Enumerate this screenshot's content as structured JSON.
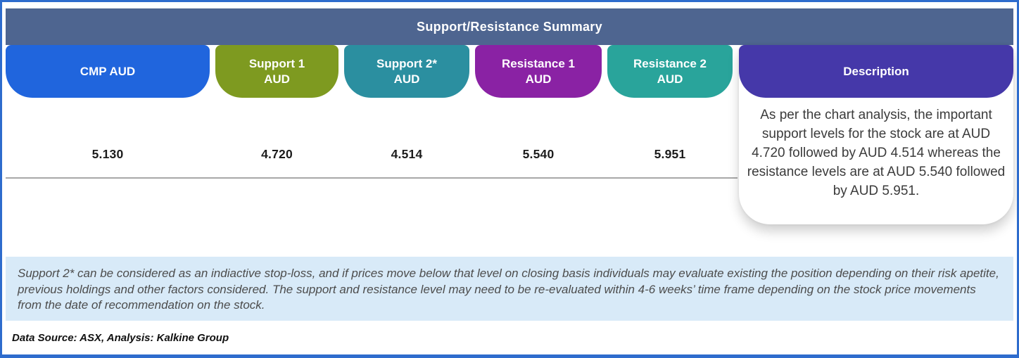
{
  "title": "Support/Resistance Summary",
  "columns": [
    {
      "line1": "CMP AUD",
      "line2": "",
      "value": "5.130",
      "color": "#2065dd"
    },
    {
      "line1": "Support 1",
      "line2": "AUD",
      "value": "4.720",
      "color": "#7e9a20"
    },
    {
      "line1": "Support 2*",
      "line2": "AUD",
      "value": "4.514",
      "color": "#2b8fa0"
    },
    {
      "line1": "Resistance 1",
      "line2": "AUD",
      "value": "5.540",
      "color": "#8a22a4"
    },
    {
      "line1": "Resistance 2",
      "line2": "AUD",
      "value": "5.951",
      "color": "#29a49b"
    }
  ],
  "description": {
    "label": "Description",
    "color": "#4538a9",
    "text": "As per the chart analysis, the important support levels for the stock are at AUD 4.720 followed by AUD 4.514 whereas the resistance levels are at AUD 5.540 followed by AUD 5.951."
  },
  "footnote": "Support 2* can be considered as an indiactive stop-loss, and if prices move below that level on closing basis individuals may evaluate existing the position depending on their risk apetite, previous holdings and other factors considered. The support and resistance level may need to be re-evaluated within 4-6 weeks’ time frame depending on the stock price movements from  the date of recommendation on the stock.",
  "source": "Data Source: ASX, Analysis: Kalkine Group",
  "colors": {
    "band": "#4e6590",
    "border": "#2e6ccd",
    "note_bg": "#d8eaf8"
  },
  "chart_data": {
    "type": "table",
    "title": "Support/Resistance Summary",
    "columns": [
      "CMP AUD",
      "Support 1 AUD",
      "Support 2* AUD",
      "Resistance 1 AUD",
      "Resistance 2 AUD",
      "Description"
    ],
    "rows": [
      [
        "5.130",
        "4.720",
        "4.514",
        "5.540",
        "5.951",
        "As per the chart analysis, the important support levels for the stock are at AUD 4.720 followed by AUD 4.514 whereas the resistance levels are at AUD 5.540 followed by AUD 5.951."
      ]
    ]
  }
}
